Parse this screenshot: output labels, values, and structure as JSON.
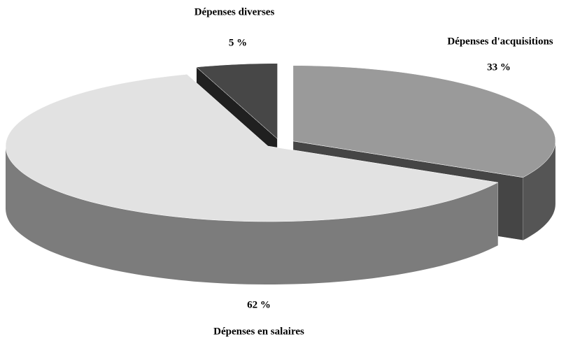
{
  "chart_data": {
    "type": "pie",
    "categories": [
      "Dépenses d'acquisitions",
      "Dépenses en salaires",
      "Dépenses diverses"
    ],
    "values": [
      33,
      62,
      5
    ],
    "value_labels": [
      "33 %",
      "62 %",
      "5 %"
    ],
    "colors": [
      "#9a9a9a",
      "#e2e2e2",
      "#474747"
    ]
  }
}
